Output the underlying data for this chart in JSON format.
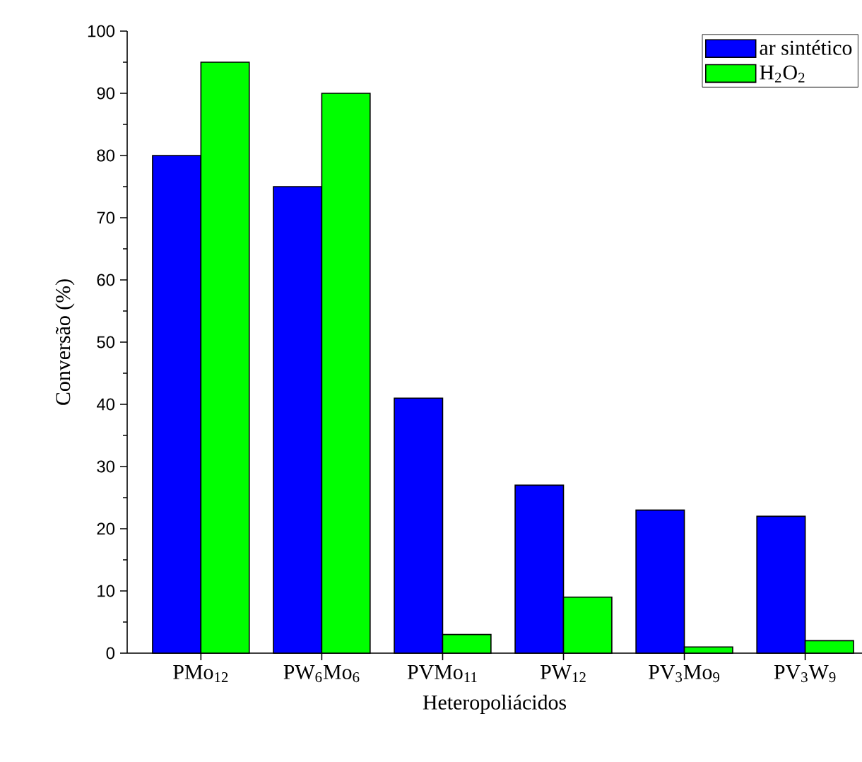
{
  "chart_data": {
    "type": "bar",
    "xlabel": "Heteropoliácidos",
    "ylabel": "Conversão (%)",
    "categories": [
      "PMo$_{12}$",
      "PW$_{6}$Mo$_{6}$",
      "PVMo$_{11}$",
      "PW$_{12}$",
      "PV$_{3}$Mo$_{9}$",
      "PV$_{3}$W$_{9}$"
    ],
    "series": [
      {
        "name": "ar sintético",
        "color": "#0000ff",
        "values": [
          80,
          75,
          41,
          27,
          23,
          22
        ]
      },
      {
        "name": "H$_{2}$O$_{2}$",
        "color": "#00ff00",
        "values": [
          95,
          90,
          3,
          9,
          1,
          2
        ]
      }
    ],
    "ylim": [
      0,
      100
    ],
    "yticks": [
      0,
      10,
      20,
      30,
      40,
      50,
      60,
      70,
      80,
      90,
      100
    ],
    "grid": false,
    "legend": "top right"
  }
}
